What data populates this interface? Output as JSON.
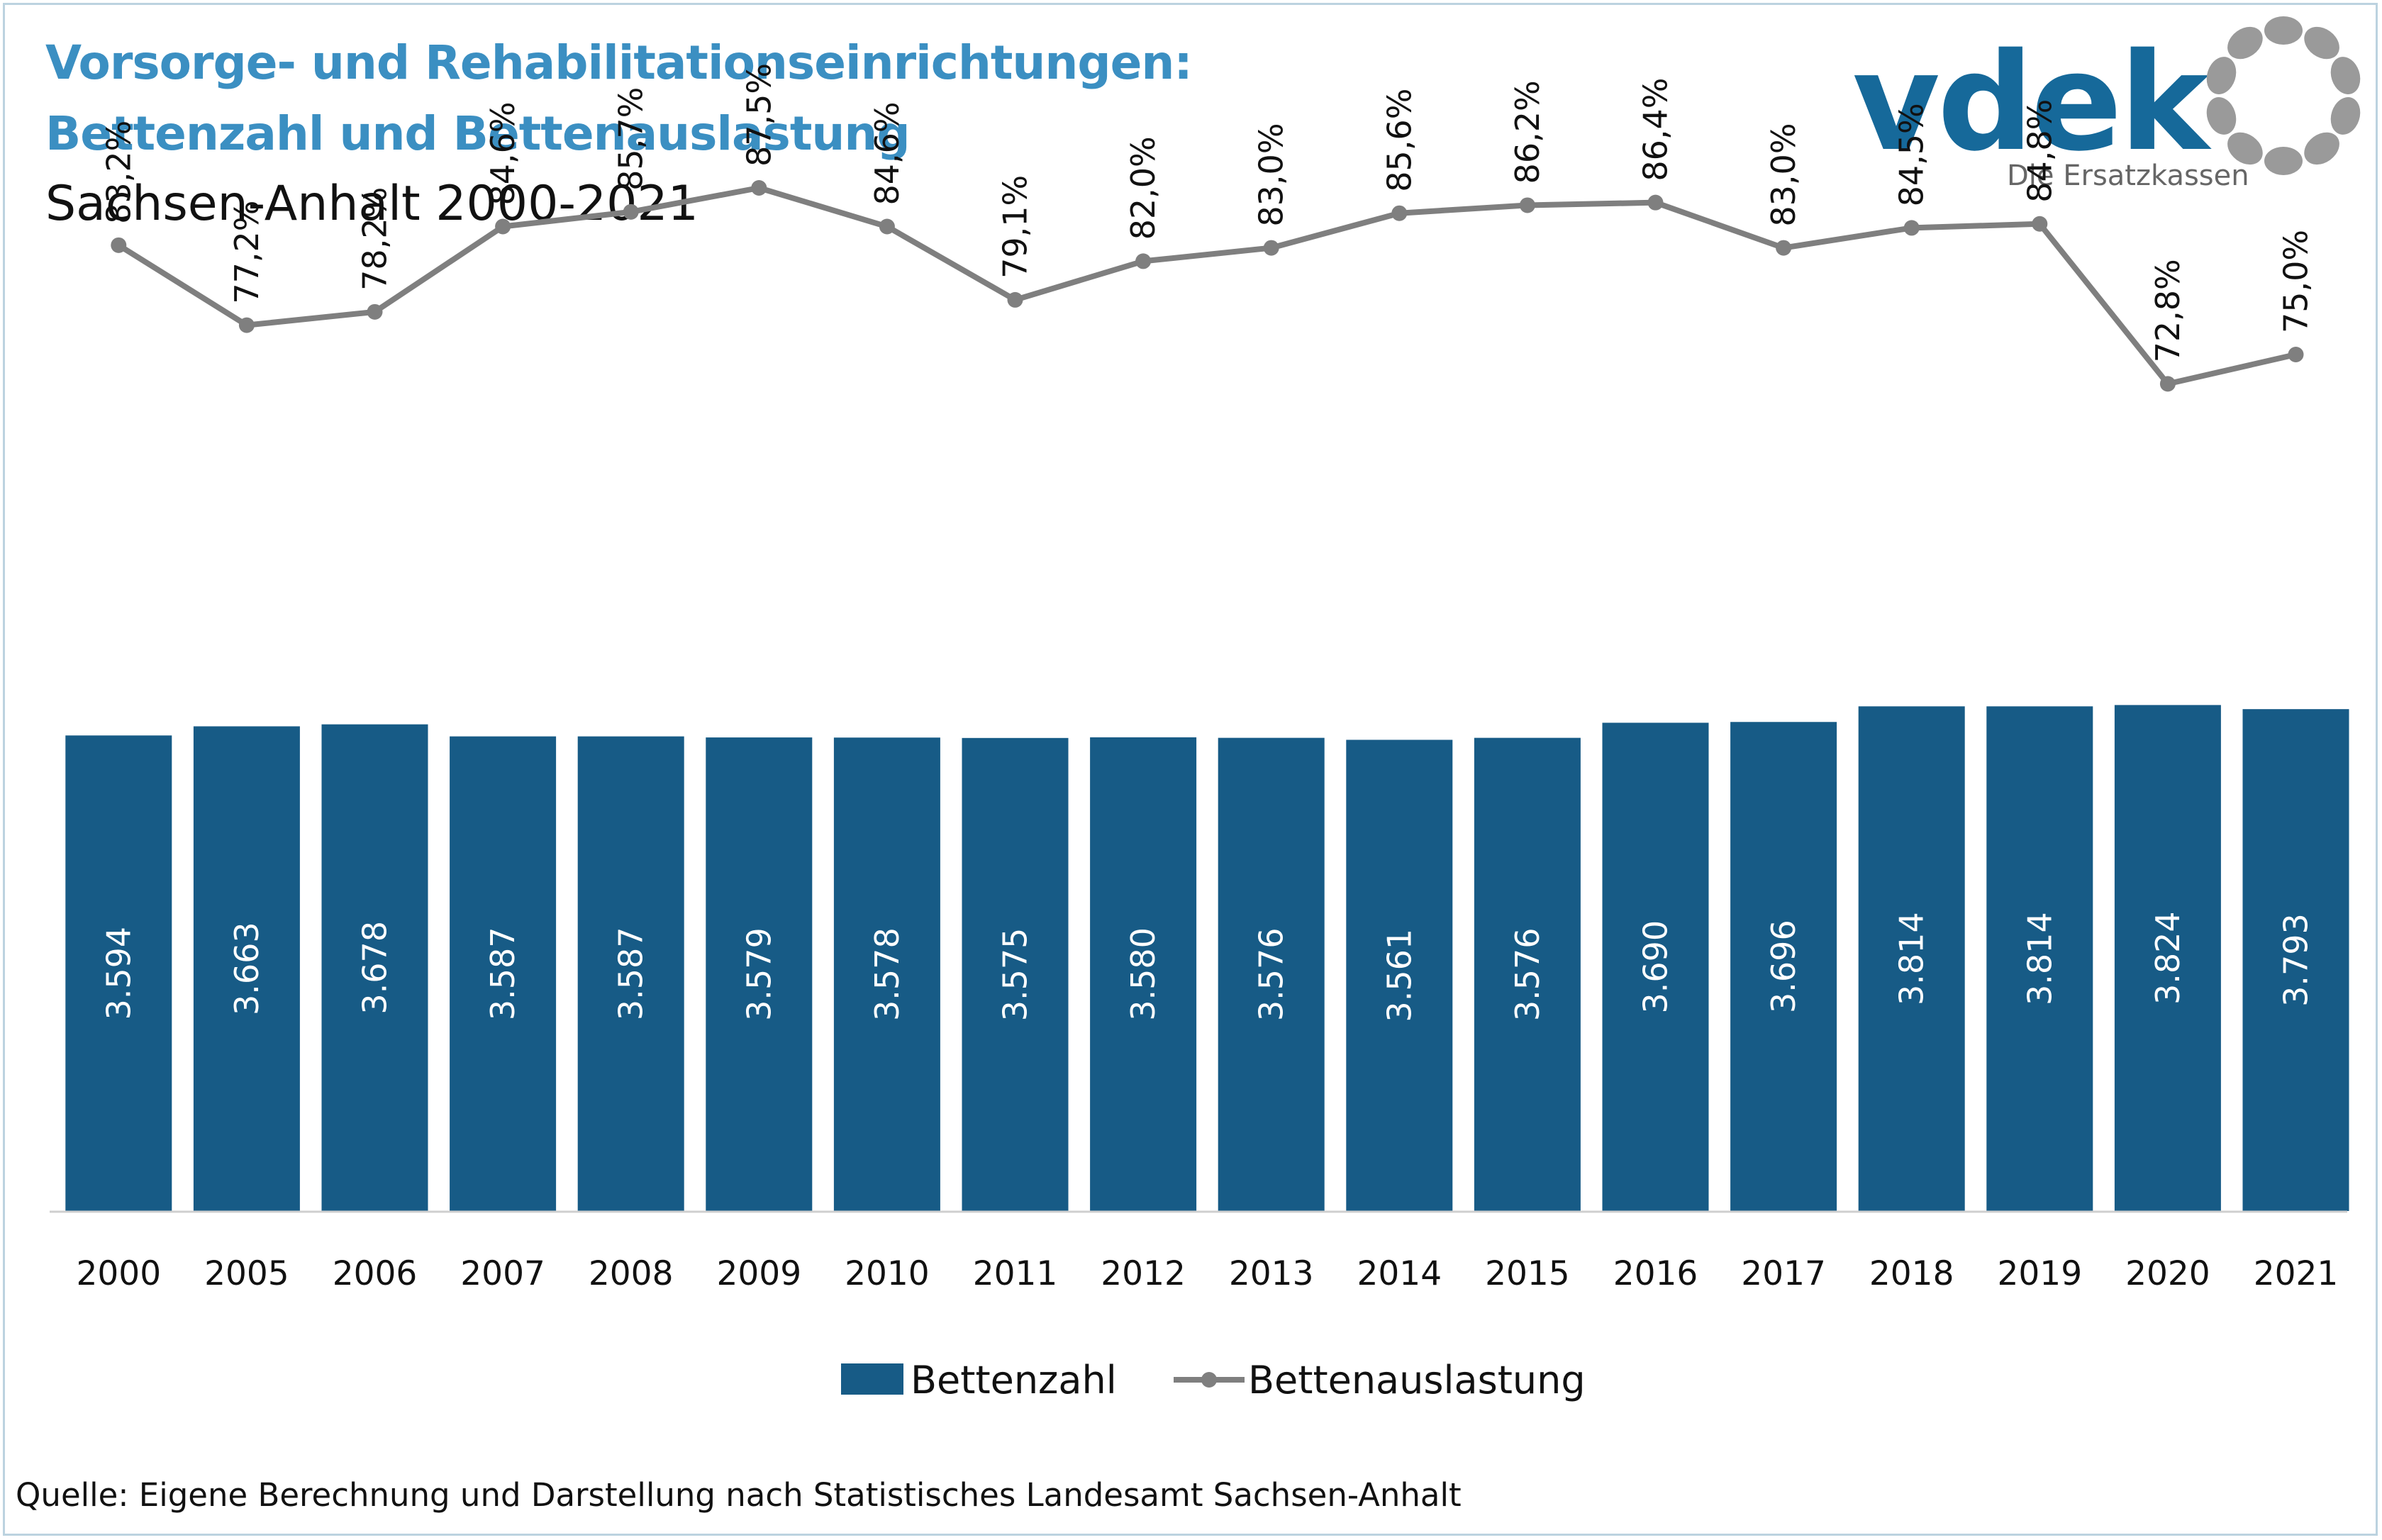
{
  "header": {
    "title_line1": "Vorsorge- und Rehabilitationseinrichtungen:",
    "title_line2": "Bettenzahl und Bettenauslastung",
    "subtitle": "Sachsen-Anhalt 2000-2021"
  },
  "logo": {
    "wordmark": "vdek",
    "tagline": "Die Ersatzkassen",
    "color": "#16699a"
  },
  "source": "Quelle: Eigene Berechnung und Darstellung nach Statistisches Landesamt Sachsen-Anhalt",
  "chart_data": {
    "type": "bar",
    "categories": [
      "2000",
      "2005",
      "2006",
      "2007",
      "2008",
      "2009",
      "2010",
      "2011",
      "2012",
      "2013",
      "2014",
      "2015",
      "2016",
      "2017",
      "2018",
      "2019",
      "2020",
      "2021"
    ],
    "series": [
      {
        "name": "Bettenzahl",
        "type": "bar",
        "color": "#175b86",
        "values": [
          3594,
          3663,
          3678,
          3587,
          3587,
          3579,
          3578,
          3575,
          3580,
          3576,
          3561,
          3576,
          3690,
          3696,
          3814,
          3814,
          3824,
          3793
        ],
        "labels": [
          "3.594",
          "3.663",
          "3.678",
          "3.587",
          "3.587",
          "3.579",
          "3.578",
          "3.575",
          "3.580",
          "3.576",
          "3.561",
          "3.576",
          "3.690",
          "3.696",
          "3.814",
          "3.814",
          "3.824",
          "3.793"
        ]
      },
      {
        "name": "Bettenauslastung",
        "type": "line",
        "color": "#7f7f7f",
        "values": [
          83.2,
          77.2,
          78.2,
          84.6,
          85.7,
          87.5,
          84.6,
          79.1,
          82.0,
          83.0,
          85.6,
          86.2,
          86.4,
          83.0,
          84.5,
          84.8,
          72.8,
          75.0
        ],
        "labels": [
          "83,2%",
          "77,2%",
          "78,2%",
          "84,6%",
          "85,7%",
          "87,5%",
          "84,6%",
          "79,1%",
          "82,0%",
          "83,0%",
          "85,6%",
          "86,2%",
          "86,4%",
          "83,0%",
          "84,5%",
          "84,8%",
          "72,8%",
          "75,0%"
        ]
      }
    ],
    "legend": {
      "placement": "bottom-center"
    },
    "grid": false
  }
}
